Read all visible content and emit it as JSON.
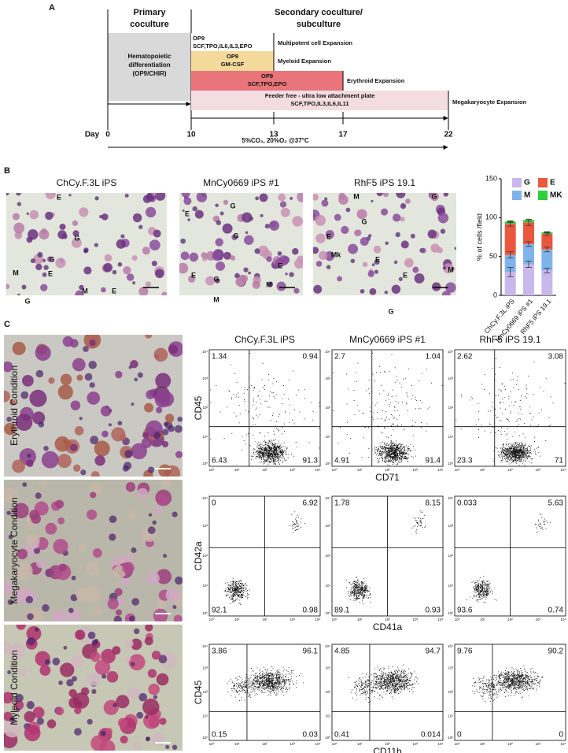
{
  "panel_a": {
    "label": "A",
    "headers": [
      [
        "Primary",
        "coculture"
      ],
      [
        "Secondary coculture/",
        "subculture"
      ]
    ],
    "day_label": "Day",
    "days": [
      "0",
      "10",
      "13",
      "17",
      "22"
    ],
    "primary_box": [
      "Hematopoietic",
      "differentiation",
      "(OP9/CHIR)"
    ],
    "stages": [
      {
        "box": [
          "OP9",
          "SCF,TPO,IL6,IL3,EPO"
        ],
        "label": "Multipotent cell Expansion"
      },
      {
        "box": [
          "OP9",
          "GM-CSF"
        ],
        "label": "Myeloid Expansion"
      },
      {
        "box": [
          "OP9",
          "SCF,TPO,EPO"
        ],
        "label": "Erythroid Expansion"
      },
      {
        "box": [
          "Feeder free - ultra low attachment plate",
          "SCF,TPO,IL3,IL6,IL11"
        ],
        "label": "Megakaryocyte Expansion"
      }
    ],
    "conditions": "5%CO₂, 20%O₂ @37°C"
  },
  "panel_b": {
    "label": "B",
    "photos": [
      {
        "title": "ChCy.F.3L iPS",
        "labels": [
          "E",
          "G",
          "G",
          "M",
          "E",
          "M",
          "E",
          "G"
        ]
      },
      {
        "title": "MnCy0669 iPS #1",
        "labels": [
          "E",
          "G",
          "G",
          "E",
          "G",
          "M",
          "M",
          "E"
        ]
      },
      {
        "title": "RhF5 iPS 19.1",
        "labels": [
          "M",
          "G",
          "G",
          "E",
          "Mk",
          "E",
          "M",
          "E",
          "G"
        ]
      }
    ],
    "chart_data": {
      "type": "stacked-bar",
      "y_label": "% of cells /field",
      "categories": [
        "ChCy.F.3L iPS",
        "MnCy0669 iPS #1",
        "RhF5 iPS 19.1"
      ],
      "series": [
        {
          "name": "G",
          "color": "#c9b8ec",
          "values": [
            30,
            40,
            32
          ],
          "errors": [
            6,
            4,
            3
          ]
        },
        {
          "name": "M",
          "color": "#7fb3ea",
          "values": [
            22,
            26,
            27
          ],
          "errors": [
            4,
            3,
            3
          ]
        },
        {
          "name": "E",
          "color": "#e9573f",
          "values": [
            40,
            28,
            20
          ],
          "errors": [
            3,
            4,
            2
          ]
        },
        {
          "name": "MK",
          "color": "#2ed03c",
          "values": [
            3,
            3,
            2
          ],
          "errors": [
            1,
            1,
            1
          ]
        }
      ],
      "legend_order": [
        0,
        2,
        1,
        3
      ],
      "ylim": [
        0,
        150
      ],
      "yticks": [
        0,
        50,
        100,
        150
      ]
    }
  },
  "panel_c": {
    "label": "C",
    "photo_labels": [
      "Erythroid Condition",
      "Megakaryocyte Condition",
      "Myleoid Condition"
    ],
    "column_titles": [
      "ChCy.F.3L iPS",
      "MnCy0669 iPS #1",
      "RhF5 iPS 19.1"
    ],
    "axis_ticks": [
      "10⁰",
      "10¹",
      "10²",
      "10³",
      "10⁴"
    ],
    "rows": [
      {
        "y_label": "CD45",
        "x_label": "CD71",
        "quadrants": [
          [
            "1.34",
            "0.94",
            "6.43",
            "91.3"
          ],
          [
            "2.7",
            "1.04",
            "4.91",
            "91.4"
          ],
          [
            "2.62",
            "3.08",
            "23.3",
            "71"
          ]
        ]
      },
      {
        "y_label": "CD42a",
        "x_label": "CD41a",
        "quadrants": [
          [
            "0",
            "6.92",
            "92.1",
            "0.98"
          ],
          [
            "1.78",
            "8.15",
            "89.1",
            "0.93"
          ],
          [
            "0.033",
            "5.63",
            "93.6",
            "0.74"
          ]
        ]
      },
      {
        "y_label": "CD45",
        "x_label": "CD11b",
        "quadrants": [
          [
            "3.86",
            "96.1",
            "0.15",
            "0.03"
          ],
          [
            "4.85",
            "94.7",
            "0.41",
            "0.014"
          ],
          [
            "9.76",
            "90.2",
            "0",
            "0"
          ]
        ]
      }
    ]
  }
}
